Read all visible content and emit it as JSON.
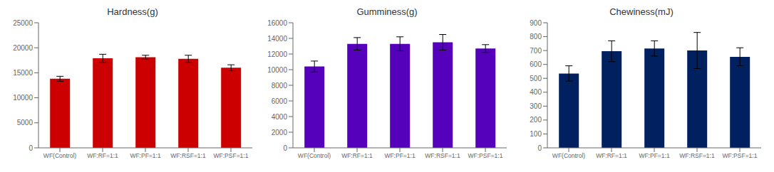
{
  "chart_data": [
    {
      "type": "bar",
      "title": "Hardness(g)",
      "categories": [
        "WF(Control)",
        "WF:RF=1:1",
        "WF:PF=1:1",
        "WF:RSF=1:1",
        "WF:PSF=1:1"
      ],
      "values": [
        13800,
        17900,
        18100,
        17800,
        16000
      ],
      "errors": [
        500,
        800,
        400,
        700,
        600
      ],
      "color": "#cc0000",
      "ylim": [
        0,
        25000
      ],
      "yticks": [
        0,
        5000,
        10000,
        15000,
        20000,
        25000
      ],
      "grid": false
    },
    {
      "type": "bar",
      "title": "Gumminess(g)",
      "categories": [
        "WF(Control)",
        "WF:RF=1:1",
        "WF:PF=1:1",
        "WF:RSF=1:1",
        "WF:PSF=1:1"
      ],
      "values": [
        10400,
        13300,
        13300,
        13500,
        12700
      ],
      "errors": [
        700,
        800,
        900,
        1000,
        500
      ],
      "color": "#5500bb",
      "ylim": [
        0,
        16000
      ],
      "yticks": [
        0,
        2000,
        4000,
        6000,
        8000,
        10000,
        12000,
        14000,
        16000
      ],
      "grid": false
    },
    {
      "type": "bar",
      "title": "Chewiness(mJ)",
      "categories": [
        "WF(Control)",
        "WF:RF=1:1",
        "WF:PF=1:1",
        "WF:RSF=1:1",
        "WF:PSF=1:1"
      ],
      "values": [
        535,
        695,
        715,
        700,
        655
      ],
      "errors": [
        55,
        75,
        55,
        130,
        65
      ],
      "color": "#002060",
      "ylim": [
        0,
        900
      ],
      "yticks": [
        0,
        100,
        200,
        300,
        400,
        500,
        600,
        700,
        800,
        900
      ],
      "grid": false
    }
  ]
}
